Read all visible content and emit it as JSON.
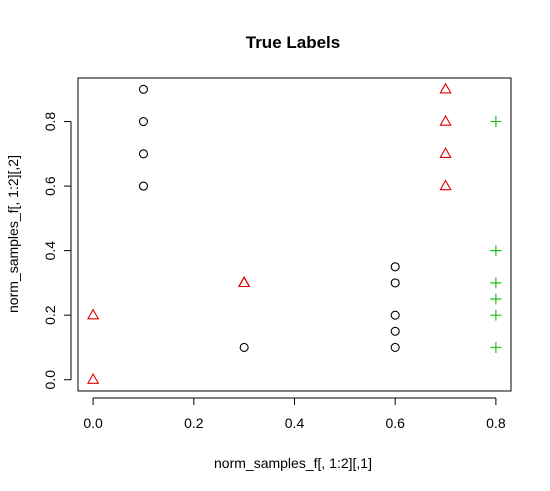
{
  "chart_data": {
    "type": "scatter",
    "title": "True Labels",
    "xlabel": "norm_samples_f[, 1:2][,1]",
    "ylabel": "norm_samples_f[, 1:2][,2]",
    "xlim": [
      -0.03,
      0.83
    ],
    "ylim": [
      -0.035,
      0.935
    ],
    "xticks": [
      "0.0",
      "0.2",
      "0.4",
      "0.6",
      "0.8"
    ],
    "xtick_values": [
      0.0,
      0.2,
      0.4,
      0.6,
      0.8
    ],
    "yticks": [
      "0.0",
      "0.2",
      "0.4",
      "0.6",
      "0.8"
    ],
    "ytick_values": [
      0.0,
      0.2,
      0.4,
      0.6,
      0.8
    ],
    "grid": false,
    "series": [
      {
        "marker": "circle",
        "color": "#000000",
        "points": [
          [
            0.1,
            0.9
          ],
          [
            0.1,
            0.8
          ],
          [
            0.1,
            0.7
          ],
          [
            0.1,
            0.6
          ],
          [
            0.3,
            0.1
          ],
          [
            0.6,
            0.35
          ],
          [
            0.6,
            0.3
          ],
          [
            0.6,
            0.2
          ],
          [
            0.6,
            0.15
          ],
          [
            0.6,
            0.1
          ]
        ]
      },
      {
        "marker": "triangle",
        "color": "#DF0000",
        "points": [
          [
            0.0,
            0.2
          ],
          [
            0.0,
            0.0
          ],
          [
            0.3,
            0.3
          ],
          [
            0.3,
            0.3
          ],
          [
            0.7,
            0.9
          ],
          [
            0.7,
            0.8
          ],
          [
            0.7,
            0.7
          ],
          [
            0.7,
            0.6
          ]
        ]
      },
      {
        "marker": "plus",
        "color": "#1FC01F",
        "points": [
          [
            0.8,
            0.8
          ],
          [
            0.8,
            0.4
          ],
          [
            0.8,
            0.3
          ],
          [
            0.8,
            0.25
          ],
          [
            0.8,
            0.2
          ],
          [
            0.8,
            0.1
          ]
        ]
      }
    ]
  }
}
